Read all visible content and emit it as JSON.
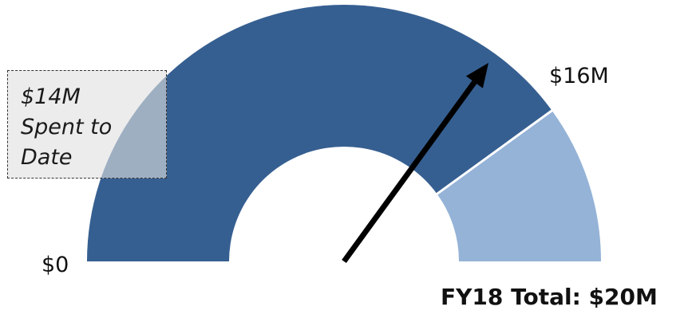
{
  "chart_data": {
    "type": "gauge",
    "min": 0,
    "max": 20,
    "segments": [
      {
        "from": 0,
        "to": 16,
        "color": "#365f91"
      },
      {
        "from": 16,
        "to": 20,
        "color": "#95b3d7"
      }
    ],
    "needle_value": 14,
    "labels": {
      "min": "$0",
      "mark": "$16M",
      "callout": "$14M\nSpent to\nDate",
      "total": "FY18 Total: $20M"
    }
  }
}
